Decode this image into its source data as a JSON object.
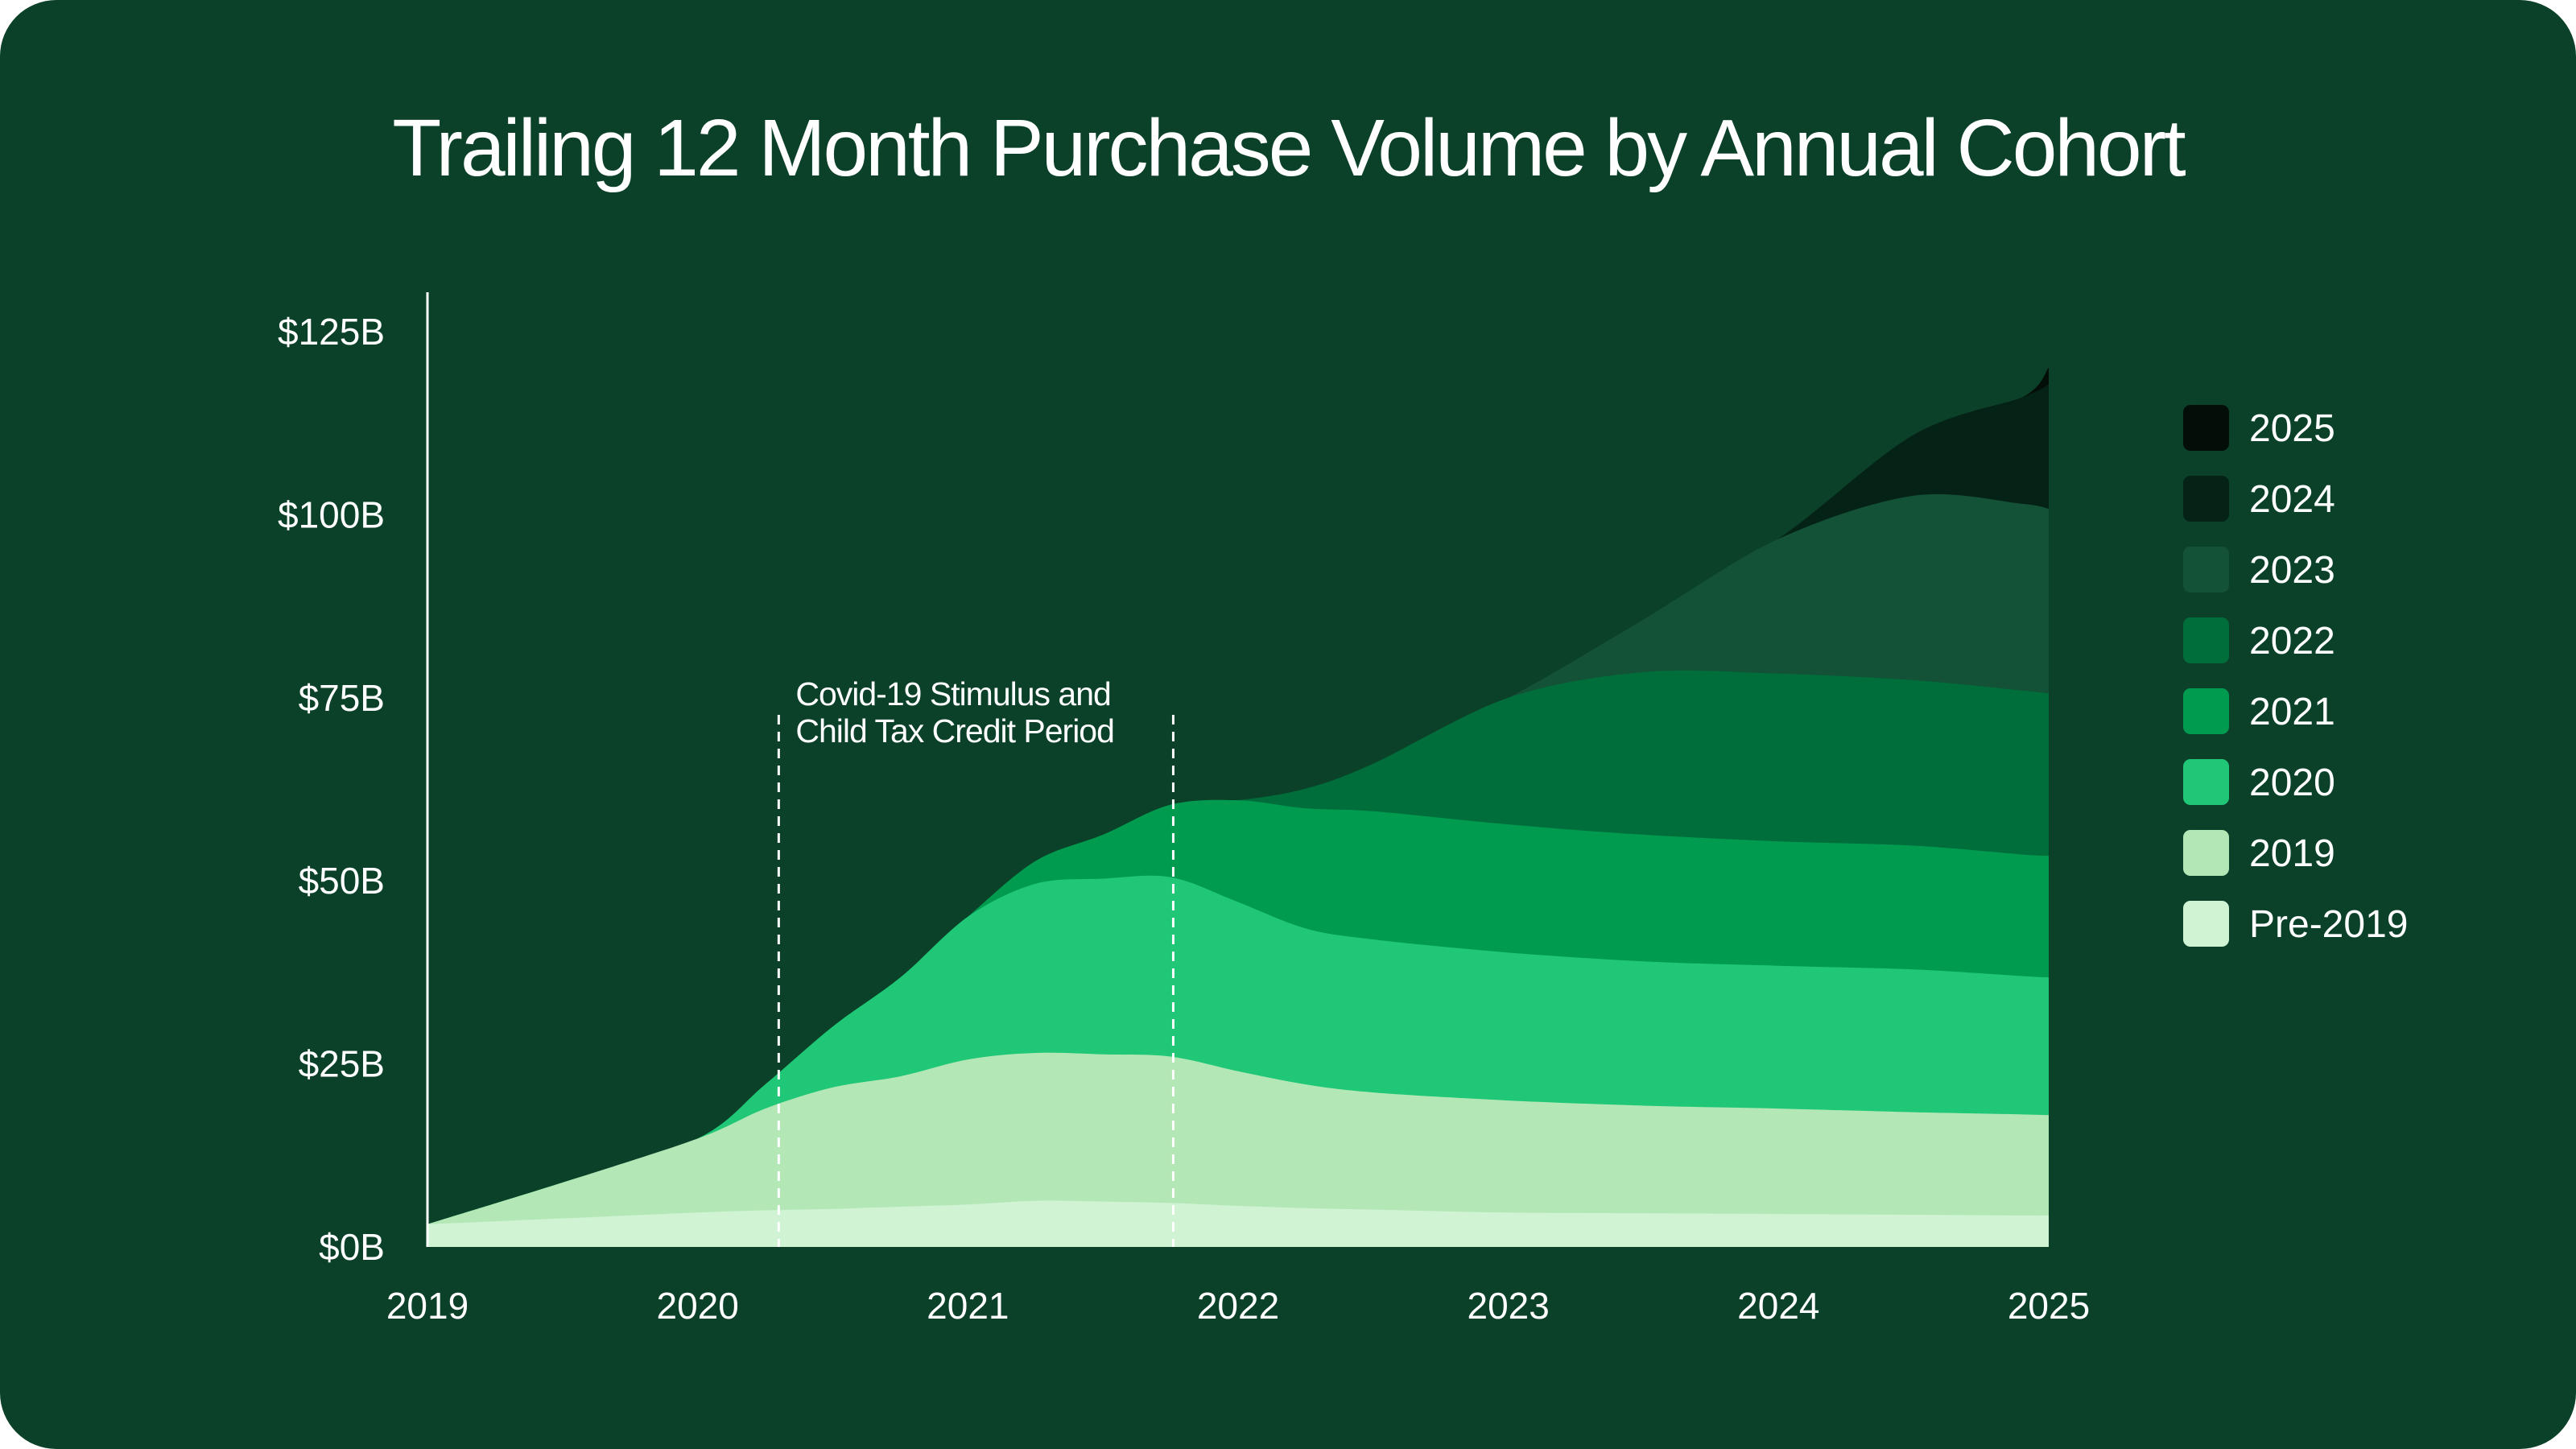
{
  "chart_data": {
    "type": "area",
    "stacked": true,
    "title": "Trailing 12 Month Purchase Volume by Annual Cohort",
    "xlabel": "",
    "ylabel": "",
    "x": [
      2019,
      2019.5,
      2020,
      2020.25,
      2020.5,
      2020.75,
      2021,
      2021.25,
      2021.5,
      2021.75,
      2022,
      2022.25,
      2022.5,
      2023,
      2023.5,
      2024,
      2024.5,
      2024.9,
      2025
    ],
    "xlim": [
      2019,
      2025
    ],
    "ylim": [
      0,
      125
    ],
    "x_ticks": [
      "2019",
      "2020",
      "2021",
      "2022",
      "2023",
      "2024",
      "2025"
    ],
    "y_ticks": [
      {
        "value": 0,
        "label": "$0B"
      },
      {
        "value": 25,
        "label": "$25B"
      },
      {
        "value": 50,
        "label": "$50B"
      },
      {
        "value": 75,
        "label": "$75B"
      },
      {
        "value": 100,
        "label": "$100B"
      },
      {
        "value": 125,
        "label": "$125B"
      }
    ],
    "grid": false,
    "legend_position": "right",
    "series": [
      {
        "name": "Pre-2019",
        "color": "#cff3d3",
        "values": [
          3.1,
          3.9,
          4.7,
          5.0,
          5.2,
          5.5,
          5.8,
          6.3,
          6.2,
          6.0,
          5.6,
          5.3,
          5.1,
          4.7,
          4.6,
          4.5,
          4.4,
          4.3,
          4.3
        ]
      },
      {
        "name": "2019",
        "color": "#b3e8b6",
        "values": [
          0,
          4.9,
          10.1,
          13.9,
          16.6,
          17.8,
          19.8,
          20.2,
          20.1,
          20.0,
          18.4,
          16.9,
          16.0,
          15.3,
          14.7,
          14.4,
          14.0,
          13.8,
          13.7
        ]
      },
      {
        "name": "2020",
        "color": "#1fc776",
        "values": [
          0,
          0,
          0,
          3.3,
          8.3,
          13.5,
          19.5,
          23.1,
          24.0,
          24.5,
          23.1,
          21.3,
          20.9,
          20.2,
          19.7,
          19.5,
          19.5,
          18.9,
          18.8
        ]
      },
      {
        "name": "2021",
        "color": "#009b4f",
        "values": [
          0,
          0,
          0,
          0,
          0,
          0,
          0,
          3.1,
          6.0,
          9.9,
          13.9,
          16.4,
          17.5,
          17.5,
          17.3,
          17.0,
          16.9,
          16.6,
          16.6
        ]
      },
      {
        "name": "2022",
        "color": "#006e3b",
        "values": [
          0,
          0,
          0,
          0,
          0,
          0,
          0,
          0,
          0,
          0,
          0,
          2.7,
          6.5,
          17.3,
          22.2,
          22.9,
          22.6,
          22.4,
          22.2
        ]
      },
      {
        "name": "2023",
        "color": "#135236",
        "values": [
          0,
          0,
          0,
          0,
          0,
          0,
          0,
          0,
          0,
          0,
          0,
          0,
          0,
          0,
          7.2,
          18.4,
          25.2,
          25.5,
          25.2
        ]
      },
      {
        "name": "2024",
        "color": "#052217",
        "values": [
          0,
          0,
          0,
          0,
          0,
          0,
          0,
          0,
          0,
          0,
          0,
          0,
          0,
          0,
          0,
          0,
          8.3,
          14.5,
          17.0
        ]
      },
      {
        "name": "2025",
        "color": "#040e08",
        "values": [
          0,
          0,
          0,
          0,
          0,
          0,
          0,
          0,
          0,
          0,
          0,
          0,
          0,
          0,
          0,
          0,
          0,
          0,
          2.3
        ]
      }
    ],
    "annotations": [
      {
        "text_lines": [
          "Covid-19 Stimulus and",
          "Child Tax Credit Period"
        ],
        "x_start": 2020.3,
        "x_end": 2021.76
      }
    ]
  },
  "colors": {
    "background": "#0c4129",
    "text": "#ffffff"
  }
}
